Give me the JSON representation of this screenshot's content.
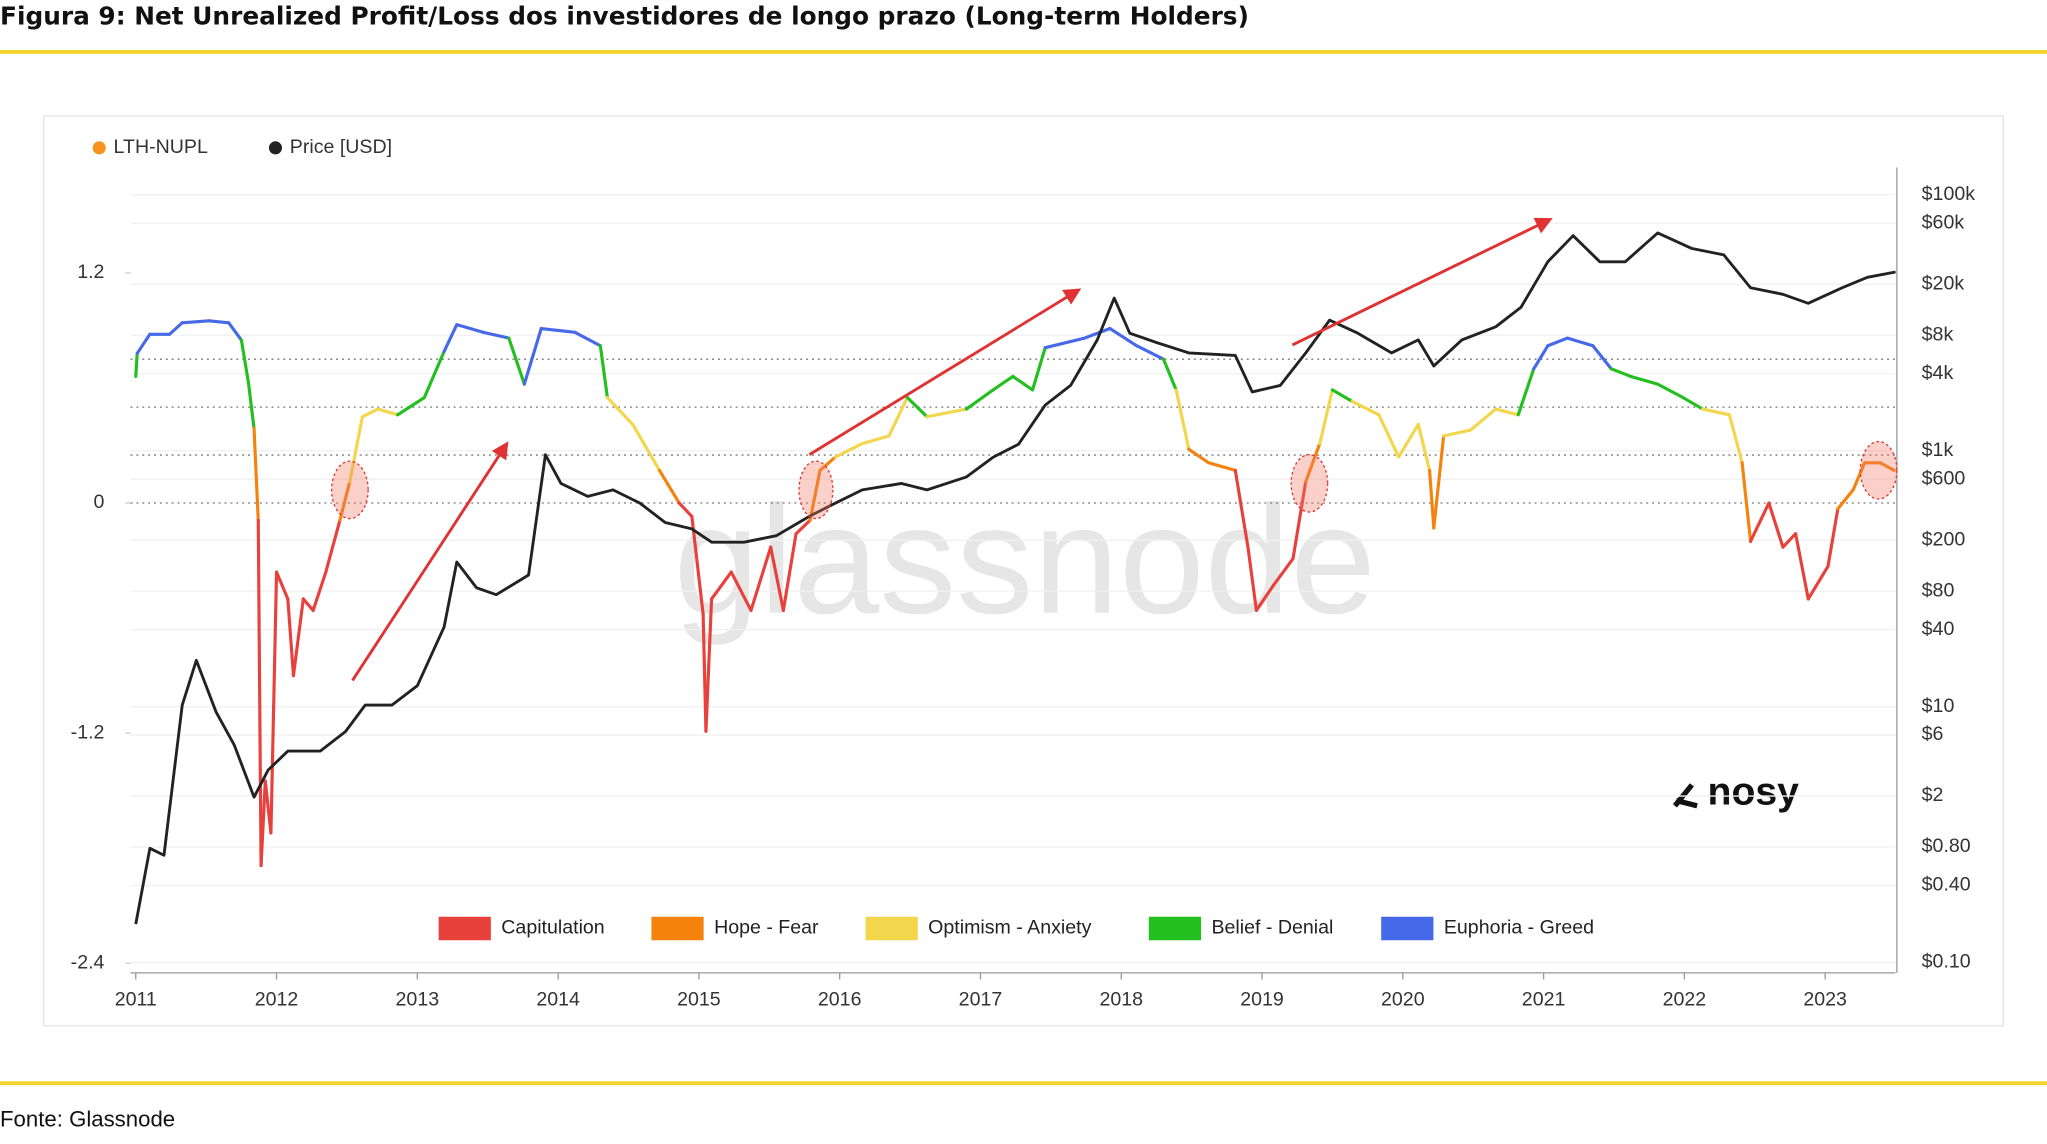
{
  "header": {
    "title": "Figura 9: Net Unrealized Profit/Loss dos investidores de longo prazo (Long-term Holders)"
  },
  "footer": {
    "source": "Fonte: Glassnode"
  },
  "chart_data": {
    "type": "line",
    "watermark": "glassnode",
    "logo": "nosy",
    "xlim": [
      2011,
      2023.5
    ],
    "xticks": [
      2011,
      2012,
      2013,
      2014,
      2015,
      2016,
      2017,
      2018,
      2019,
      2020,
      2021,
      2022,
      2023
    ],
    "ylim": [
      -2.45,
      1.75
    ],
    "yticks": [
      -2.4,
      -1.2,
      0,
      1.2
    ],
    "y2lim": [
      0.083,
      164000
    ],
    "y2scale": "log",
    "y2ticks": [
      {
        "value": 100000,
        "label": "$100k"
      },
      {
        "value": 60000,
        "label": "$60k"
      },
      {
        "value": 20000,
        "label": "$20k"
      },
      {
        "value": 8000,
        "label": "$8k"
      },
      {
        "value": 4000,
        "label": "$4k"
      },
      {
        "value": 1000,
        "label": "$1k"
      },
      {
        "value": 600,
        "label": "$600"
      },
      {
        "value": 200,
        "label": "$200"
      },
      {
        "value": 80,
        "label": "$80"
      },
      {
        "value": 40,
        "label": "$40"
      },
      {
        "value": 10,
        "label": "$10"
      },
      {
        "value": 6,
        "label": "$6"
      },
      {
        "value": 2,
        "label": "$2"
      },
      {
        "value": 0.8,
        "label": "$0.80"
      },
      {
        "value": 0.4,
        "label": "$0.40"
      },
      {
        "value": 0.1,
        "label": "$0.10"
      }
    ],
    "grid": true,
    "reference_lines": [
      0,
      0.25,
      0.5,
      0.75
    ],
    "zones": [
      {
        "name": "Capitulation",
        "color": "#e8413c"
      },
      {
        "name": "Hope - Fear",
        "color": "#f5820d"
      },
      {
        "name": "Optimism - Anxiety",
        "color": "#f2d64b"
      },
      {
        "name": "Belief - Denial",
        "color": "#22bf1f"
      },
      {
        "name": "Euphoria - Greed",
        "color": "#4569e8"
      }
    ],
    "series": [
      {
        "name": "LTH-NUPL",
        "color": "#f7931a",
        "x": [
          2011.0,
          2011.01,
          2011.1,
          2011.24,
          2011.33,
          2011.52,
          2011.66,
          2011.75,
          2011.8,
          2011.84,
          2011.87,
          2011.89,
          2011.92,
          2011.96,
          2012.0,
          2012.08,
          2012.12,
          2012.19,
          2012.26,
          2012.35,
          2012.45,
          2012.52,
          2012.61,
          2012.72,
          2012.86,
          2013.05,
          2013.19,
          2013.28,
          2013.47,
          2013.65,
          2013.76,
          2013.88,
          2014.12,
          2014.3,
          2014.35,
          2014.53,
          2014.72,
          2014.86,
          2014.95,
          2015.03,
          2015.05,
          2015.09,
          2015.23,
          2015.37,
          2015.51,
          2015.6,
          2015.69,
          2015.79,
          2015.86,
          2015.97,
          2016.16,
          2016.35,
          2016.48,
          2016.62,
          2016.9,
          2017.09,
          2017.23,
          2017.37,
          2017.46,
          2017.74,
          2017.92,
          2018.11,
          2018.3,
          2018.39,
          2018.48,
          2018.62,
          2018.81,
          2018.9,
          2018.96,
          2019.08,
          2019.22,
          2019.31,
          2019.41,
          2019.5,
          2019.64,
          2019.83,
          2019.97,
          2020.11,
          2020.19,
          2020.22,
          2020.29,
          2020.48,
          2020.66,
          2020.82,
          2020.93,
          2021.03,
          2021.17,
          2021.35,
          2021.48,
          2021.62,
          2021.81,
          2021.99,
          2022.13,
          2022.32,
          2022.41,
          2022.47,
          2022.6,
          2022.7,
          2022.79,
          2022.88,
          2023.02,
          2023.09,
          2023.2,
          2023.28,
          2023.39,
          2023.49
        ],
        "values": [
          0.66,
          0.78,
          0.88,
          0.88,
          0.94,
          0.95,
          0.94,
          0.85,
          0.63,
          0.39,
          -0.09,
          -1.89,
          -1.45,
          -1.72,
          -0.36,
          -0.5,
          -0.9,
          -0.5,
          -0.56,
          -0.36,
          -0.09,
          0.11,
          0.45,
          0.49,
          0.46,
          0.55,
          0.79,
          0.93,
          0.89,
          0.86,
          0.62,
          0.91,
          0.89,
          0.82,
          0.55,
          0.41,
          0.17,
          0.0,
          -0.07,
          -0.58,
          -1.19,
          -0.5,
          -0.36,
          -0.56,
          -0.23,
          -0.56,
          -0.16,
          -0.09,
          0.17,
          0.24,
          0.31,
          0.35,
          0.55,
          0.45,
          0.49,
          0.59,
          0.66,
          0.59,
          0.81,
          0.86,
          0.91,
          0.82,
          0.75,
          0.59,
          0.28,
          0.21,
          0.17,
          -0.23,
          -0.56,
          -0.43,
          -0.29,
          0.11,
          0.31,
          0.59,
          0.53,
          0.46,
          0.24,
          0.41,
          0.17,
          -0.13,
          0.35,
          0.38,
          0.49,
          0.46,
          0.7,
          0.82,
          0.86,
          0.82,
          0.7,
          0.66,
          0.62,
          0.55,
          0.49,
          0.46,
          0.21,
          -0.2,
          0.0,
          -0.23,
          -0.16,
          -0.5,
          -0.33,
          -0.03,
          0.07,
          0.21,
          0.21,
          0.17
        ]
      },
      {
        "name": "Price [USD]",
        "color": "#222222",
        "axis": "y2",
        "x": [
          2011.0,
          2011.1,
          2011.2,
          2011.33,
          2011.43,
          2011.57,
          2011.7,
          2011.84,
          2011.94,
          2012.08,
          2012.31,
          2012.49,
          2012.63,
          2012.82,
          2013.0,
          2013.19,
          2013.28,
          2013.42,
          2013.56,
          2013.79,
          2013.91,
          2014.02,
          2014.21,
          2014.39,
          2014.58,
          2014.76,
          2014.95,
          2015.09,
          2015.32,
          2015.55,
          2015.79,
          2015.97,
          2016.16,
          2016.44,
          2016.62,
          2016.9,
          2017.09,
          2017.27,
          2017.46,
          2017.64,
          2017.83,
          2017.95,
          2018.06,
          2018.25,
          2018.48,
          2018.81,
          2018.93,
          2019.13,
          2019.31,
          2019.48,
          2019.68,
          2019.92,
          2020.11,
          2020.22,
          2020.42,
          2020.66,
          2020.84,
          2021.03,
          2021.21,
          2021.4,
          2021.58,
          2021.81,
          2022.05,
          2022.28,
          2022.47,
          2022.7,
          2022.88,
          2023.12,
          2023.3,
          2023.5
        ],
        "values": [
          0.2,
          0.78,
          0.69,
          10.3,
          23,
          9.1,
          5.0,
          1.96,
          3.2,
          4.5,
          4.5,
          6.4,
          10.3,
          10.3,
          14.6,
          42,
          135,
          85,
          75,
          107,
          930,
          555,
          440,
          495,
          390,
          275,
          245,
          193,
          193,
          217,
          310,
          390,
          495,
          555,
          495,
          625,
          890,
          1125,
          2275,
          3240,
          7360,
          15600,
          8300,
          7020,
          5820,
          5560,
          2880,
          3240,
          5820,
          10500,
          8300,
          5820,
          7360,
          4600,
          7360,
          9300,
          13250,
          30000,
          48000,
          30000,
          30000,
          50400,
          38200,
          34000,
          18800,
          16700,
          14200,
          18800,
          22700,
          25000
        ]
      }
    ]
  }
}
